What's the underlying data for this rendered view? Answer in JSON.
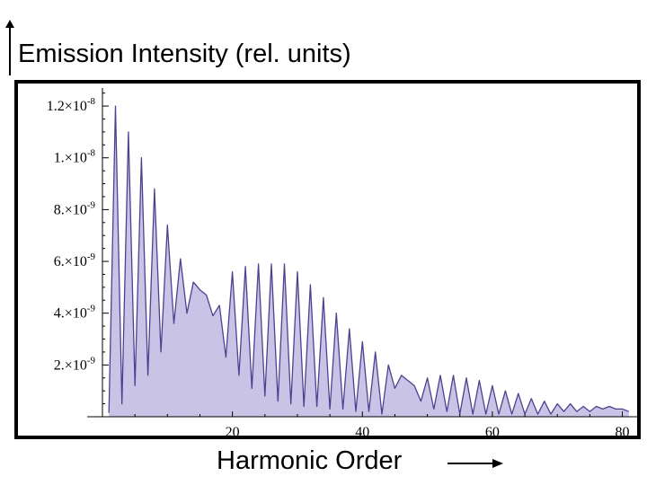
{
  "chart_data": {
    "type": "area",
    "title": "",
    "ylabel": "Emission Intensity (rel. units)",
    "xlabel": "Harmonic Order",
    "xlim": [
      0,
      82
    ],
    "ylim": [
      0,
      1.28e-08
    ],
    "x_ticks": [
      {
        "value": 20,
        "label": "20"
      },
      {
        "value": 40,
        "label": "40"
      },
      {
        "value": 60,
        "label": "60"
      },
      {
        "value": 80,
        "label": "80"
      }
    ],
    "y_ticks": [
      {
        "value": 2e-09,
        "mantissa": "2.",
        "exp": "-9"
      },
      {
        "value": 4e-09,
        "mantissa": "4.",
        "exp": "-9"
      },
      {
        "value": 6e-09,
        "mantissa": "6.",
        "exp": "-9"
      },
      {
        "value": 8e-09,
        "mantissa": "8.",
        "exp": "-9"
      },
      {
        "value": 1e-08,
        "mantissa": "1.",
        "exp": "-8"
      },
      {
        "value": 1.2e-08,
        "mantissa": "1.2",
        "exp": "-8"
      }
    ],
    "grid": false,
    "series": [
      {
        "fill_color": "#c9c3e6",
        "line_color": "#4a4390",
        "x": [
          1,
          2,
          3,
          4,
          5,
          6,
          7,
          8,
          9,
          10,
          11,
          12,
          13,
          14,
          15,
          16,
          17,
          18,
          19,
          20,
          21,
          22,
          23,
          24,
          25,
          26,
          27,
          28,
          29,
          30,
          31,
          32,
          33,
          34,
          35,
          36,
          37,
          38,
          39,
          40,
          41,
          42,
          43,
          44,
          45,
          46,
          47,
          48,
          49,
          50,
          51,
          52,
          53,
          54,
          55,
          56,
          57,
          58,
          59,
          60,
          61,
          62,
          63,
          64,
          65,
          66,
          67,
          68,
          69,
          70,
          71,
          72,
          73,
          74,
          75,
          76,
          77,
          78,
          79,
          80,
          81
        ],
        "y": [
          1.5e-10,
          1.2e-08,
          5e-10,
          1.1e-08,
          1.2e-09,
          1e-08,
          1.6e-09,
          8.8e-09,
          2.5e-09,
          7.4e-09,
          3.6e-09,
          6.1e-09,
          4e-09,
          5.2e-09,
          4.9e-09,
          4.7e-09,
          3.9e-09,
          4.3e-09,
          2.3e-09,
          5.6e-09,
          1.6e-09,
          5.8e-09,
          1.1e-09,
          5.9e-09,
          8e-10,
          5.9e-09,
          6e-10,
          5.9e-09,
          5e-10,
          5.6e-09,
          4e-10,
          5.1e-09,
          4e-10,
          4.6e-09,
          3e-10,
          4e-09,
          3e-10,
          3.4e-09,
          2e-10,
          2.9e-09,
          2e-10,
          2.5e-09,
          1e-10,
          2e-09,
          1.1e-09,
          1.6e-09,
          1.4e-09,
          1.2e-09,
          6e-10,
          1.5e-09,
          3e-10,
          1.6e-09,
          2e-10,
          1.6e-09,
          1e-10,
          1.5e-09,
          1e-10,
          1.4e-09,
          1e-10,
          1.2e-09,
          1e-10,
          1e-09,
          1e-10,
          9e-10,
          1e-10,
          7e-10,
          1e-10,
          6e-10,
          1e-10,
          5e-10,
          2e-10,
          5e-10,
          2e-10,
          4e-10,
          2e-10,
          4e-10,
          3e-10,
          4e-10,
          3e-10,
          3e-10,
          2e-10
        ]
      }
    ]
  }
}
